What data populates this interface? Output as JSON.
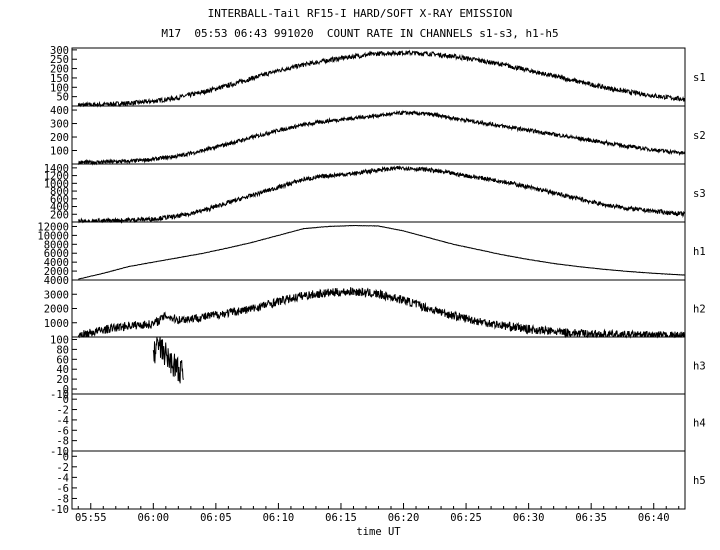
{
  "chart_data": {
    "type": "line",
    "title": "INTERBALL-Tail RF15-I HARD/SOFT X-RAY EMISSION",
    "subtitle": "M17  05:53 06:43 991020  COUNT RATE IN CHANNELS s1-s3, h1-h5",
    "xlabel": "time UT",
    "xlim_minutes": [
      53.5,
      102.5
    ],
    "x_ticks": [
      {
        "t": 55,
        "label": "05:55"
      },
      {
        "t": 60,
        "label": "06:00"
      },
      {
        "t": 65,
        "label": "06:05"
      },
      {
        "t": 70,
        "label": "06:10"
      },
      {
        "t": 75,
        "label": "06:15"
      },
      {
        "t": 80,
        "label": "06:20"
      },
      {
        "t": 85,
        "label": "06:25"
      },
      {
        "t": 90,
        "label": "06:30"
      },
      {
        "t": 95,
        "label": "06:35"
      },
      {
        "t": 100,
        "label": "06:40"
      }
    ],
    "panels": [
      {
        "name": "s1",
        "ylim": [
          0,
          310
        ],
        "yticks": [
          "50",
          "100",
          "150",
          "200",
          "250",
          "300"
        ],
        "ytick_values": [
          50,
          100,
          150,
          200,
          250,
          300
        ],
        "t": [
          54,
          56,
          58,
          60,
          62,
          64,
          66,
          68,
          70,
          72,
          74,
          76,
          78,
          80,
          82,
          84,
          86,
          88,
          90,
          92,
          94,
          96,
          98,
          100,
          102.5
        ],
        "y": [
          5,
          8,
          15,
          25,
          45,
          75,
          110,
          150,
          190,
          220,
          245,
          265,
          280,
          285,
          280,
          265,
          245,
          220,
          190,
          160,
          130,
          100,
          75,
          55,
          35
        ],
        "noise": 12
      },
      {
        "name": "s2",
        "ylim": [
          0,
          430
        ],
        "yticks": [
          "100",
          "200",
          "300",
          "400"
        ],
        "ytick_values": [
          100,
          200,
          300,
          400
        ],
        "t": [
          54,
          56,
          58,
          60,
          62,
          64,
          66,
          68,
          70,
          72,
          74,
          76,
          78,
          80,
          82,
          84,
          86,
          88,
          90,
          92,
          94,
          96,
          98,
          100,
          102.5
        ],
        "y": [
          10,
          15,
          20,
          35,
          60,
          100,
          150,
          200,
          250,
          290,
          320,
          340,
          360,
          380,
          370,
          340,
          310,
          280,
          250,
          220,
          190,
          160,
          130,
          105,
          80
        ],
        "noise": 14
      },
      {
        "name": "s3",
        "ylim": [
          0,
          1500
        ],
        "yticks": [
          "200",
          "400",
          "600",
          "800",
          "1000",
          "1200",
          "1400"
        ],
        "ytick_values": [
          200,
          400,
          600,
          800,
          1000,
          1200,
          1400
        ],
        "t": [
          54,
          56,
          58,
          60,
          62,
          64,
          66,
          68,
          70,
          72,
          74,
          76,
          78,
          80,
          82,
          84,
          86,
          88,
          90,
          92,
          94,
          96,
          98,
          100,
          102.5
        ],
        "y": [
          20,
          30,
          50,
          80,
          150,
          300,
          500,
          700,
          900,
          1100,
          1200,
          1250,
          1350,
          1400,
          1350,
          1250,
          1150,
          1050,
          900,
          750,
          600,
          450,
          350,
          280,
          200
        ],
        "noise": 55
      },
      {
        "name": "h1",
        "ylim": [
          0,
          13000
        ],
        "yticks": [
          "2000",
          "4000",
          "6000",
          "8000",
          "10000",
          "12000"
        ],
        "ytick_values": [
          2000,
          4000,
          6000,
          8000,
          10000,
          12000
        ],
        "t": [
          54,
          56,
          58,
          60,
          62,
          64,
          66,
          68,
          70,
          72,
          74,
          76,
          78,
          80,
          82,
          84,
          86,
          88,
          90,
          92,
          94,
          96,
          98,
          100,
          102.5
        ],
        "y": [
          200,
          1500,
          3000,
          4000,
          5000,
          6000,
          7200,
          8500,
          10000,
          11500,
          12000,
          12200,
          12100,
          11000,
          9500,
          8000,
          6800,
          5600,
          4600,
          3700,
          3000,
          2400,
          1900,
          1500,
          1100
        ],
        "noise": 40
      },
      {
        "name": "h2",
        "ylim": [
          0,
          4000
        ],
        "yticks": [
          "1000",
          "2000",
          "3000",
          "4000"
        ],
        "ytick_values": [
          1000,
          2000,
          3000,
          4000
        ],
        "t": [
          54,
          56,
          58,
          60,
          61,
          62,
          64,
          66,
          68,
          70,
          72,
          74,
          76,
          78,
          80,
          82,
          84,
          86,
          88,
          90,
          92,
          94,
          96,
          98,
          100,
          102.5
        ],
        "y": [
          100,
          500,
          800,
          900,
          1500,
          1200,
          1400,
          1700,
          2000,
          2500,
          2900,
          3100,
          3200,
          3000,
          2600,
          2000,
          1500,
          1100,
          800,
          550,
          380,
          260,
          180,
          130,
          100,
          80
        ],
        "noise": 300
      },
      {
        "name": "h3",
        "ylim": [
          -10,
          105
        ],
        "yticks": [
          "-10",
          "0",
          "20",
          "40",
          "60",
          "80",
          "100"
        ],
        "ytick_values": [
          -10,
          0,
          20,
          40,
          60,
          80,
          100
        ],
        "t": [
          60.0,
          60.2,
          60.4,
          60.6,
          60.8,
          61.0,
          61.2,
          61.4,
          61.6,
          61.8,
          62.0,
          62.2,
          62.4
        ],
        "y": [
          60,
          85,
          90,
          80,
          75,
          70,
          60,
          55,
          50,
          45,
          40,
          35,
          30
        ],
        "noise": 25
      },
      {
        "name": "h4",
        "ylim": [
          -10,
          1
        ],
        "yticks": [
          "-10",
          "-8",
          "-6",
          "-4",
          "-2",
          "0"
        ],
        "ytick_values": [
          -10,
          -8,
          -6,
          -4,
          -2,
          0
        ],
        "t": [],
        "y": [],
        "noise": 0
      },
      {
        "name": "h5",
        "ylim": [
          -10,
          1
        ],
        "yticks": [
          "-10",
          "-8",
          "-6",
          "-4",
          "-2",
          "0"
        ],
        "ytick_values": [
          -10,
          -8,
          -6,
          -4,
          -2,
          0
        ],
        "t": [],
        "y": [],
        "noise": 0
      }
    ]
  }
}
